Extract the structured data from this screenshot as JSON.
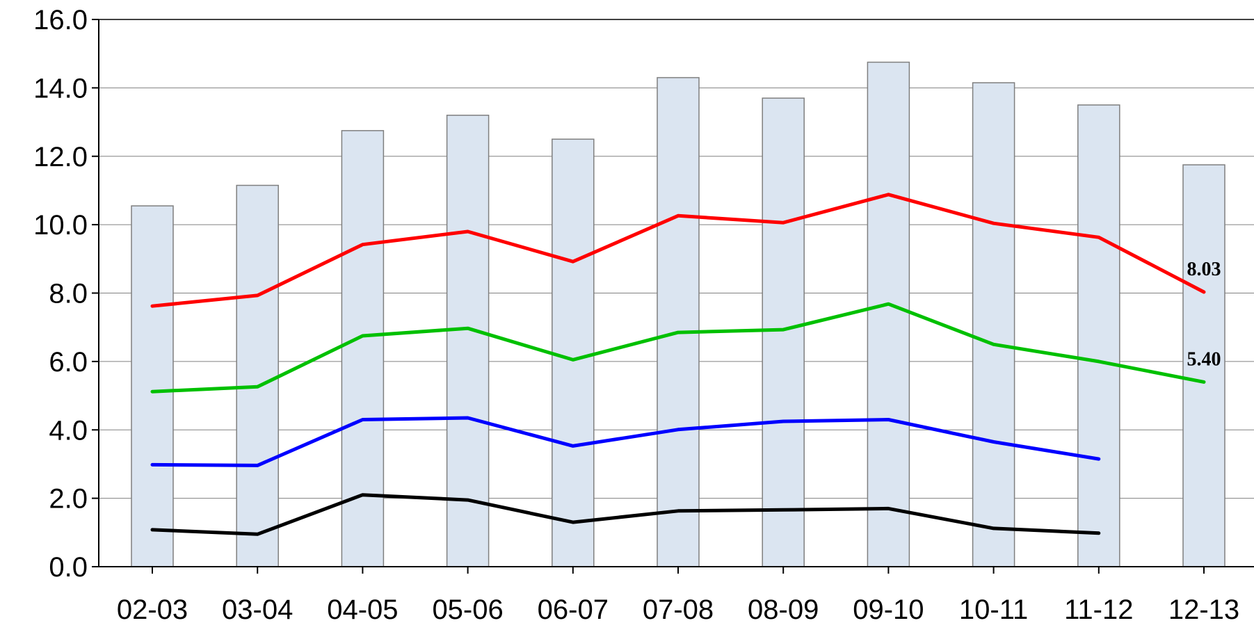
{
  "chart_data": {
    "type": "bar",
    "categories": [
      "02-03",
      "03-04",
      "04-05",
      "05-06",
      "06-07",
      "07-08",
      "08-09",
      "09-10",
      "10-11",
      "11-12",
      "12-13"
    ],
    "ylim": [
      0,
      16
    ],
    "yticks": [
      "0.0",
      "2.0",
      "4.0",
      "6.0",
      "8.0",
      "10.0",
      "12.0",
      "14.0",
      "16.0"
    ],
    "grid": true,
    "bars": {
      "values": [
        10.55,
        11.15,
        12.75,
        13.2,
        12.5,
        14.3,
        13.7,
        14.75,
        14.15,
        13.5,
        11.75
      ],
      "fill": "#dbe5f1",
      "stroke": "#7f7f7f"
    },
    "series": [
      {
        "color": "#ff0000",
        "values": [
          7.62,
          7.93,
          9.42,
          9.8,
          8.92,
          10.26,
          10.06,
          10.88,
          10.04,
          9.63,
          8.03
        ],
        "end_label": "8.03"
      },
      {
        "color": "#00c000",
        "values": [
          5.12,
          5.26,
          6.75,
          6.97,
          6.05,
          6.85,
          6.93,
          7.68,
          6.5,
          6.0,
          5.4
        ],
        "end_label": "5.40"
      },
      {
        "color": "#0000ff",
        "values": [
          2.98,
          2.96,
          4.3,
          4.35,
          3.53,
          4.01,
          4.25,
          4.3,
          3.65,
          3.15,
          null
        ]
      },
      {
        "color": "#000000",
        "values": [
          1.08,
          0.95,
          2.1,
          1.95,
          1.3,
          1.63,
          1.66,
          1.7,
          1.12,
          0.98,
          null
        ]
      }
    ]
  }
}
